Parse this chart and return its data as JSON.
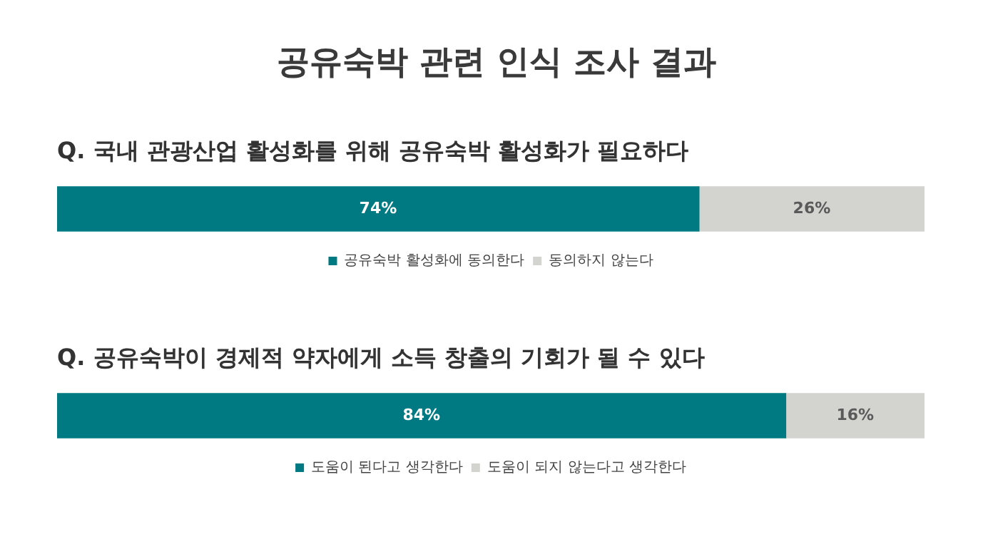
{
  "chart_data": [
    {
      "type": "bar",
      "orientation": "horizontal",
      "stacked": true,
      "title": "공유숙박 관련 인식 조사 결과",
      "subtitle": "Q. 국내 관광산업 활성화를 위해 공유숙박 활성화가 필요하다",
      "categories": [
        null
      ],
      "xlim": [
        0,
        100
      ],
      "tick_labels": false,
      "legend": "bottom",
      "series": [
        {
          "name": "공유숙박 활성화에 동의한다",
          "color": "#007a82",
          "values": [
            74
          ],
          "value_labels": [
            "74%"
          ]
        },
        {
          "name": "동의하지 않는다",
          "color": "#d3d3cf",
          "values": [
            26
          ],
          "value_labels": [
            "26%"
          ]
        }
      ]
    },
    {
      "type": "bar",
      "orientation": "horizontal",
      "stacked": true,
      "title": "Q. 공유숙박이 경제적 약자에게 소득 창출의 기회가 될 수 있다",
      "categories": [
        null
      ],
      "xlim": [
        0,
        100
      ],
      "tick_labels": false,
      "legend": "bottom",
      "series": [
        {
          "name": "도움이 된다고 생각한다",
          "color": "#007a82",
          "values": [
            84
          ],
          "value_labels": [
            "84%"
          ]
        },
        {
          "name": "도움이 되지 않는다고 생각한다",
          "color": "#d3d3cf",
          "values": [
            16
          ],
          "value_labels": [
            "16%"
          ]
        }
      ]
    }
  ]
}
